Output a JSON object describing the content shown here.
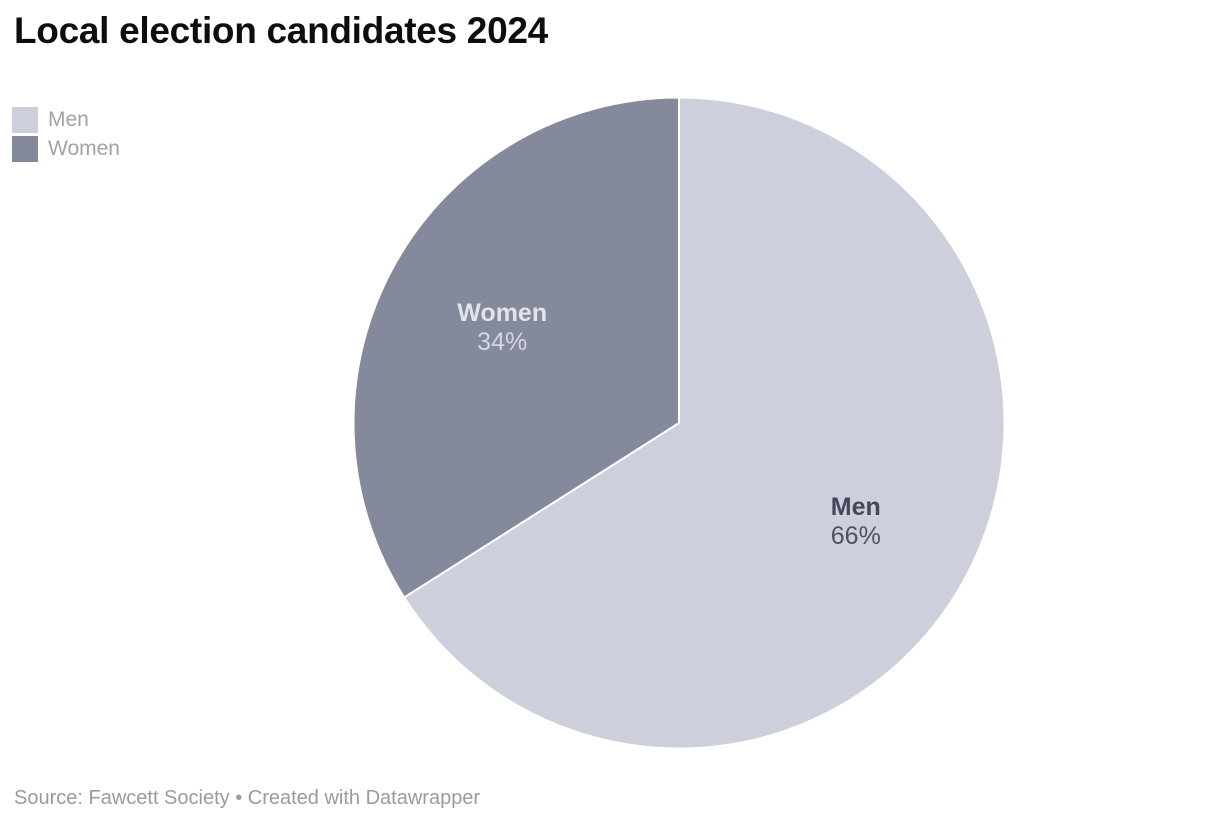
{
  "header": {
    "title": "Local election candidates 2024"
  },
  "legend": {
    "text_color": "#a1a3a9",
    "items": [
      {
        "label": "Men",
        "color": "#cdd0dc"
      },
      {
        "label": "Women",
        "color": "#848a9b"
      }
    ]
  },
  "chart_data": {
    "type": "pie",
    "title": "Local election candidates 2024",
    "categories": [
      "Men",
      "Women"
    ],
    "values": [
      66,
      34
    ],
    "value_suffix": "%",
    "start_angle_deg": 0,
    "direction": "clockwise",
    "legend_position": "top-left",
    "separator_color": "#ffffff",
    "slices": [
      {
        "label": "Men",
        "value": 66,
        "color": "#cdd0dc",
        "label_color": "#43475a",
        "value_color": "#4d5162"
      },
      {
        "label": "Women",
        "value": 34,
        "color": "#848a9b",
        "label_color": "#e2e4ec",
        "value_color": "#d3d6e0"
      }
    ]
  },
  "footer": {
    "source_text": "Source: Fawcett Society • Created with Datawrapper"
  }
}
